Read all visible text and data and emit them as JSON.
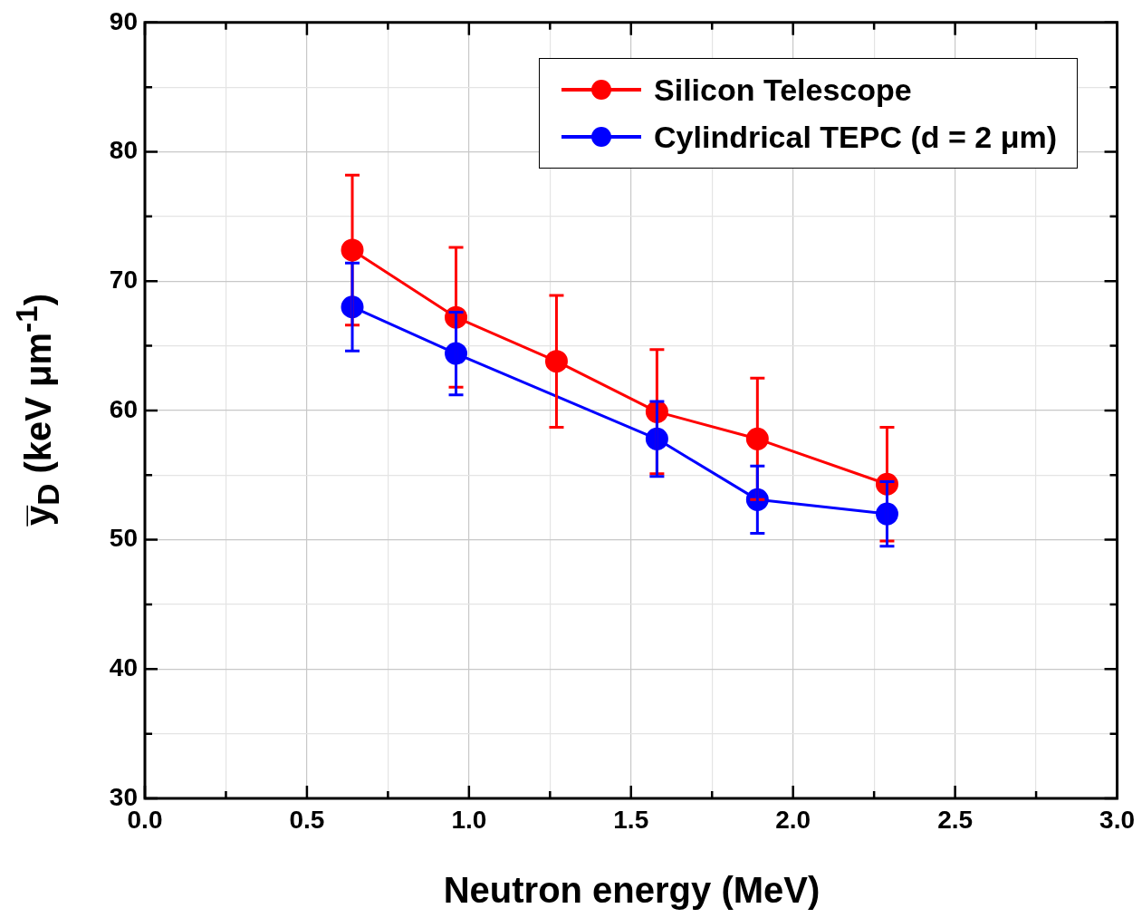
{
  "chart_data": {
    "type": "line",
    "xlabel": "Neutron energy (MeV)",
    "ylabel": "y̅$_{D}$ (keV μm$^{-1}$)",
    "xlim": [
      0,
      3
    ],
    "xticks": [
      {
        "value": 0,
        "label": "0.0"
      },
      {
        "value": 0.25,
        "label": null
      },
      {
        "value": 0.5,
        "label": "0.5"
      },
      {
        "value": 0.75,
        "label": null
      },
      {
        "value": 1,
        "label": "1.0"
      },
      {
        "value": 1.25,
        "label": null
      },
      {
        "value": 1.5,
        "label": "1.5"
      },
      {
        "value": 1.75,
        "label": null
      },
      {
        "value": 2,
        "label": "2.0"
      },
      {
        "value": 2.25,
        "label": null
      },
      {
        "value": 2.5,
        "label": "2.5"
      },
      {
        "value": 2.75,
        "label": null
      },
      {
        "value": 3,
        "label": "3.0"
      }
    ],
    "ylim": [
      30,
      90
    ],
    "yticks": [
      30,
      {
        "value": 35,
        "label": null
      },
      40,
      {
        "value": 45,
        "label": null
      },
      50,
      {
        "value": 55,
        "label": null
      },
      60,
      {
        "value": 65,
        "label": null
      },
      70,
      {
        "value": 75,
        "label": null
      },
      80,
      {
        "value": 85,
        "label": null
      },
      90
    ],
    "grid": true,
    "legend": "top right",
    "marker": "circle",
    "line_style": "solid",
    "series": [
      {
        "name": "Silicon Telescope",
        "color": "#ff0000",
        "x": [
          0.64,
          0.96,
          1.27,
          1.58,
          1.89,
          2.29
        ],
        "values": [
          72.4,
          67.2,
          63.8,
          59.9,
          57.8,
          54.3
        ],
        "errors": [
          5.8,
          5.4,
          5.1,
          4.8,
          4.7,
          4.4
        ]
      },
      {
        "name": "Cylindrical TEPC (d = 2 μm)",
        "color": "#0000ff",
        "x": [
          0.64,
          0.96,
          1.58,
          1.89,
          2.29
        ],
        "values": [
          68.0,
          64.4,
          57.8,
          53.1,
          52.0
        ],
        "errors": [
          3.4,
          3.2,
          2.9,
          2.6,
          2.5
        ]
      }
    ]
  }
}
